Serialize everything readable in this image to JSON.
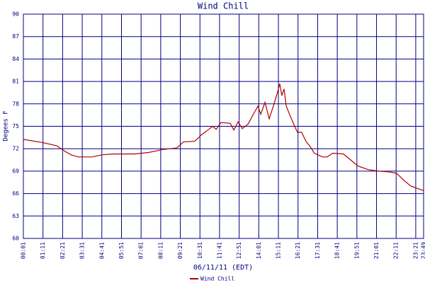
{
  "chart_data": {
    "type": "line",
    "title": "Wind Chill",
    "xlabel": "06/11/11 (EDT)",
    "ylabel": "Degees F",
    "x": [
      1,
      72,
      120,
      143,
      170,
      196,
      246,
      284,
      322,
      398,
      448,
      499,
      549,
      572,
      613,
      638,
      663,
      676,
      689,
      706,
      739,
      752,
      767,
      782,
      803,
      823,
      838,
      848,
      863,
      878,
      893,
      906,
      916,
      923,
      931,
      939,
      954,
      969,
      979,
      994,
      1009,
      1024,
      1039,
      1068,
      1085,
      1105,
      1143,
      1169,
      1194,
      1232,
      1270,
      1308,
      1333,
      1358,
      1383,
      1429
    ],
    "series": [
      {
        "name": "Wind Chill",
        "color": "#b00000",
        "values": [
          73.25,
          72.8,
          72.4,
          71.8,
          71.2,
          70.9,
          70.9,
          71.2,
          71.3,
          71.3,
          71.5,
          71.9,
          72.1,
          72.9,
          73.0,
          73.9,
          74.6,
          75.0,
          74.6,
          75.5,
          75.4,
          74.5,
          75.6,
          74.7,
          75.3,
          76.7,
          77.7,
          76.6,
          78.2,
          76.0,
          77.7,
          79.3,
          80.7,
          79.1,
          80.0,
          77.7,
          76.3,
          75.0,
          74.2,
          74.2,
          73.0,
          72.3,
          71.4,
          70.9,
          70.9,
          71.4,
          71.3,
          70.5,
          69.7,
          69.2,
          69.0,
          68.9,
          68.7,
          67.8,
          67.0,
          66.4
        ]
      }
    ],
    "xlim": [
      1,
      1429
    ],
    "xticks": [
      {
        "value": 1,
        "label": "00:01"
      },
      {
        "value": 71,
        "label": "01:11"
      },
      {
        "value": 141,
        "label": "02:21"
      },
      {
        "value": 211,
        "label": "03:31"
      },
      {
        "value": 281,
        "label": "04:41"
      },
      {
        "value": 351,
        "label": "05:51"
      },
      {
        "value": 421,
        "label": "07:01"
      },
      {
        "value": 491,
        "label": "08:11"
      },
      {
        "value": 561,
        "label": "09:21"
      },
      {
        "value": 631,
        "label": "10:31"
      },
      {
        "value": 701,
        "label": "11:41"
      },
      {
        "value": 771,
        "label": "12:51"
      },
      {
        "value": 841,
        "label": "14:01"
      },
      {
        "value": 911,
        "label": "15:11"
      },
      {
        "value": 981,
        "label": "16:21"
      },
      {
        "value": 1051,
        "label": "17:31"
      },
      {
        "value": 1121,
        "label": "18:41"
      },
      {
        "value": 1191,
        "label": "19:51"
      },
      {
        "value": 1261,
        "label": "21:01"
      },
      {
        "value": 1331,
        "label": "22:11"
      },
      {
        "value": 1401,
        "label": "23:21"
      },
      {
        "value": 1429,
        "label": "23:49"
      }
    ],
    "ylim": [
      60,
      90
    ],
    "yticks": [
      60,
      63,
      66,
      69,
      72,
      75,
      78,
      81,
      84,
      87,
      90
    ],
    "grid": true
  }
}
